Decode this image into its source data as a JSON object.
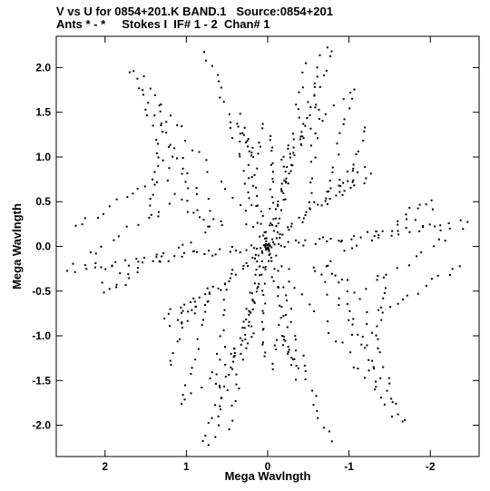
{
  "header": {
    "line1": "V vs U for 0854+201.K BAND.1   Source:0854+201",
    "line2": "Ants * - *     Stokes I  IF# 1 - 2  Chan# 1"
  },
  "chart_data": {
    "type": "scatter",
    "xlabel": "Mega Wavlngth",
    "ylabel": "Mega Wavlngth",
    "xlim": [
      2.6,
      -2.6
    ],
    "ylim": [
      -2.35,
      2.35
    ],
    "x_inverted": true,
    "xticks": [
      2,
      1,
      0,
      -1,
      -2
    ],
    "xtick_labels": [
      "2",
      "1",
      "0",
      "-1",
      "-2"
    ],
    "yticks": [
      2.0,
      1.5,
      1.0,
      0.5,
      0.0,
      -0.5,
      -1.0,
      -1.5,
      -2.0
    ],
    "ytick_labels": [
      "2.0",
      "1.5",
      "1.0",
      "0.5",
      "0.0",
      "-0.5",
      "-1.0",
      "-1.5",
      "-2.0"
    ],
    "grid": false,
    "marker_color": "#000000",
    "tracks": [
      {
        "from": [
          0.0,
          0.0
        ],
        "to": [
          1.6,
          1.95
        ],
        "n": 22,
        "wiggle": [
          0.06,
          0.05
        ]
      },
      {
        "from": [
          1.35,
          1.05
        ],
        "to": [
          1.45,
          0.35
        ],
        "n": 10,
        "wiggle": [
          0.04,
          0.04
        ]
      },
      {
        "from": [
          1.4,
          0.75
        ],
        "to": [
          2.4,
          0.2
        ],
        "n": 12,
        "wiggle": [
          0.05,
          0.04
        ]
      },
      {
        "from": [
          1.0,
          0.4
        ],
        "to": [
          0.7,
          0.25
        ],
        "n": 5,
        "wiggle": [
          0.03,
          0.03
        ]
      },
      {
        "from": [
          0.0,
          0.0
        ],
        "to": [
          2.4,
          -0.25
        ],
        "n": 20,
        "wiggle": [
          0.05,
          0.04
        ]
      },
      {
        "from": [
          1.6,
          -0.3
        ],
        "to": [
          2.0,
          -0.55
        ],
        "n": 6,
        "wiggle": [
          0.04,
          0.04
        ]
      },
      {
        "from": [
          0.0,
          0.0
        ],
        "to": [
          0.75,
          2.2
        ],
        "n": 26,
        "wiggle": [
          0.05,
          0.04
        ]
      },
      {
        "from": [
          0.35,
          1.35
        ],
        "to": [
          0.15,
          1.0
        ],
        "n": 8,
        "wiggle": [
          0.03,
          0.04
        ]
      },
      {
        "from": [
          0.0,
          0.0
        ],
        "to": [
          -0.7,
          2.2
        ],
        "n": 26,
        "wiggle": [
          0.05,
          0.04
        ]
      },
      {
        "from": [
          -0.2,
          1.0
        ],
        "to": [
          -1.0,
          1.75
        ],
        "n": 10,
        "wiggle": [
          0.05,
          0.04
        ]
      },
      {
        "from": [
          0.0,
          0.0
        ],
        "to": [
          -1.2,
          0.85
        ],
        "n": 22,
        "wiggle": [
          0.05,
          0.04
        ]
      },
      {
        "from": [
          -0.9,
          0.6
        ],
        "to": [
          -1.3,
          0.8
        ],
        "n": 7,
        "wiggle": [
          0.04,
          0.03
        ]
      },
      {
        "from": [
          0.0,
          0.0
        ],
        "to": [
          -2.45,
          0.25
        ],
        "n": 24,
        "wiggle": [
          0.06,
          0.05
        ]
      },
      {
        "from": [
          -0.6,
          -0.25
        ],
        "to": [
          -2.0,
          0.45
        ],
        "n": 14,
        "wiggle": [
          0.05,
          0.05
        ]
      },
      {
        "from": [
          -0.6,
          -0.25
        ],
        "to": [
          -1.7,
          -1.95
        ],
        "n": 20,
        "wiggle": [
          0.05,
          0.05
        ]
      },
      {
        "from": [
          -1.2,
          -0.45
        ],
        "to": [
          -2.2,
          0.1
        ],
        "n": 11,
        "wiggle": [
          0.05,
          0.04
        ]
      },
      {
        "from": [
          -0.9,
          -0.4
        ],
        "to": [
          -1.35,
          -1.6
        ],
        "n": 12,
        "wiggle": [
          0.04,
          0.05
        ]
      },
      {
        "from": [
          -1.1,
          -0.5
        ],
        "to": [
          -1.55,
          -1.7
        ],
        "n": 11,
        "wiggle": [
          0.04,
          0.05
        ]
      },
      {
        "from": [
          0.0,
          0.0
        ],
        "to": [
          -0.35,
          -1.45
        ],
        "n": 22,
        "wiggle": [
          0.04,
          0.05
        ]
      },
      {
        "from": [
          0.05,
          -0.2
        ],
        "to": [
          0.05,
          -1.25
        ],
        "n": 16,
        "wiggle": [
          0.03,
          0.04
        ]
      },
      {
        "from": [
          0.0,
          0.0
        ],
        "to": [
          0.75,
          -2.2
        ],
        "n": 24,
        "wiggle": [
          0.05,
          0.05
        ]
      },
      {
        "from": [
          0.2,
          -0.5
        ],
        "to": [
          0.45,
          -2.0
        ],
        "n": 16,
        "wiggle": [
          0.04,
          0.05
        ]
      },
      {
        "from": [
          0.0,
          0.0
        ],
        "to": [
          1.05,
          -0.85
        ],
        "n": 18,
        "wiggle": [
          0.04,
          0.04
        ]
      },
      {
        "from": [
          0.7,
          -0.5
        ],
        "to": [
          1.05,
          -1.75
        ],
        "n": 13,
        "wiggle": [
          0.04,
          0.05
        ]
      },
      {
        "from": [
          1.0,
          -0.75
        ],
        "to": [
          1.2,
          -1.35
        ],
        "n": 8,
        "wiggle": [
          0.03,
          0.04
        ]
      },
      {
        "from": [
          -0.05,
          0.25
        ],
        "to": [
          -0.25,
          1.1
        ],
        "n": 10,
        "wiggle": [
          0.04,
          0.04
        ]
      },
      {
        "from": [
          0.15,
          0.9
        ],
        "to": [
          0.05,
          1.4
        ],
        "n": 6,
        "wiggle": [
          0.03,
          0.04
        ]
      },
      {
        "from": [
          -0.55,
          0.5
        ],
        "to": [
          -0.6,
          1.6
        ],
        "n": 12,
        "wiggle": [
          0.05,
          0.05
        ]
      }
    ]
  }
}
